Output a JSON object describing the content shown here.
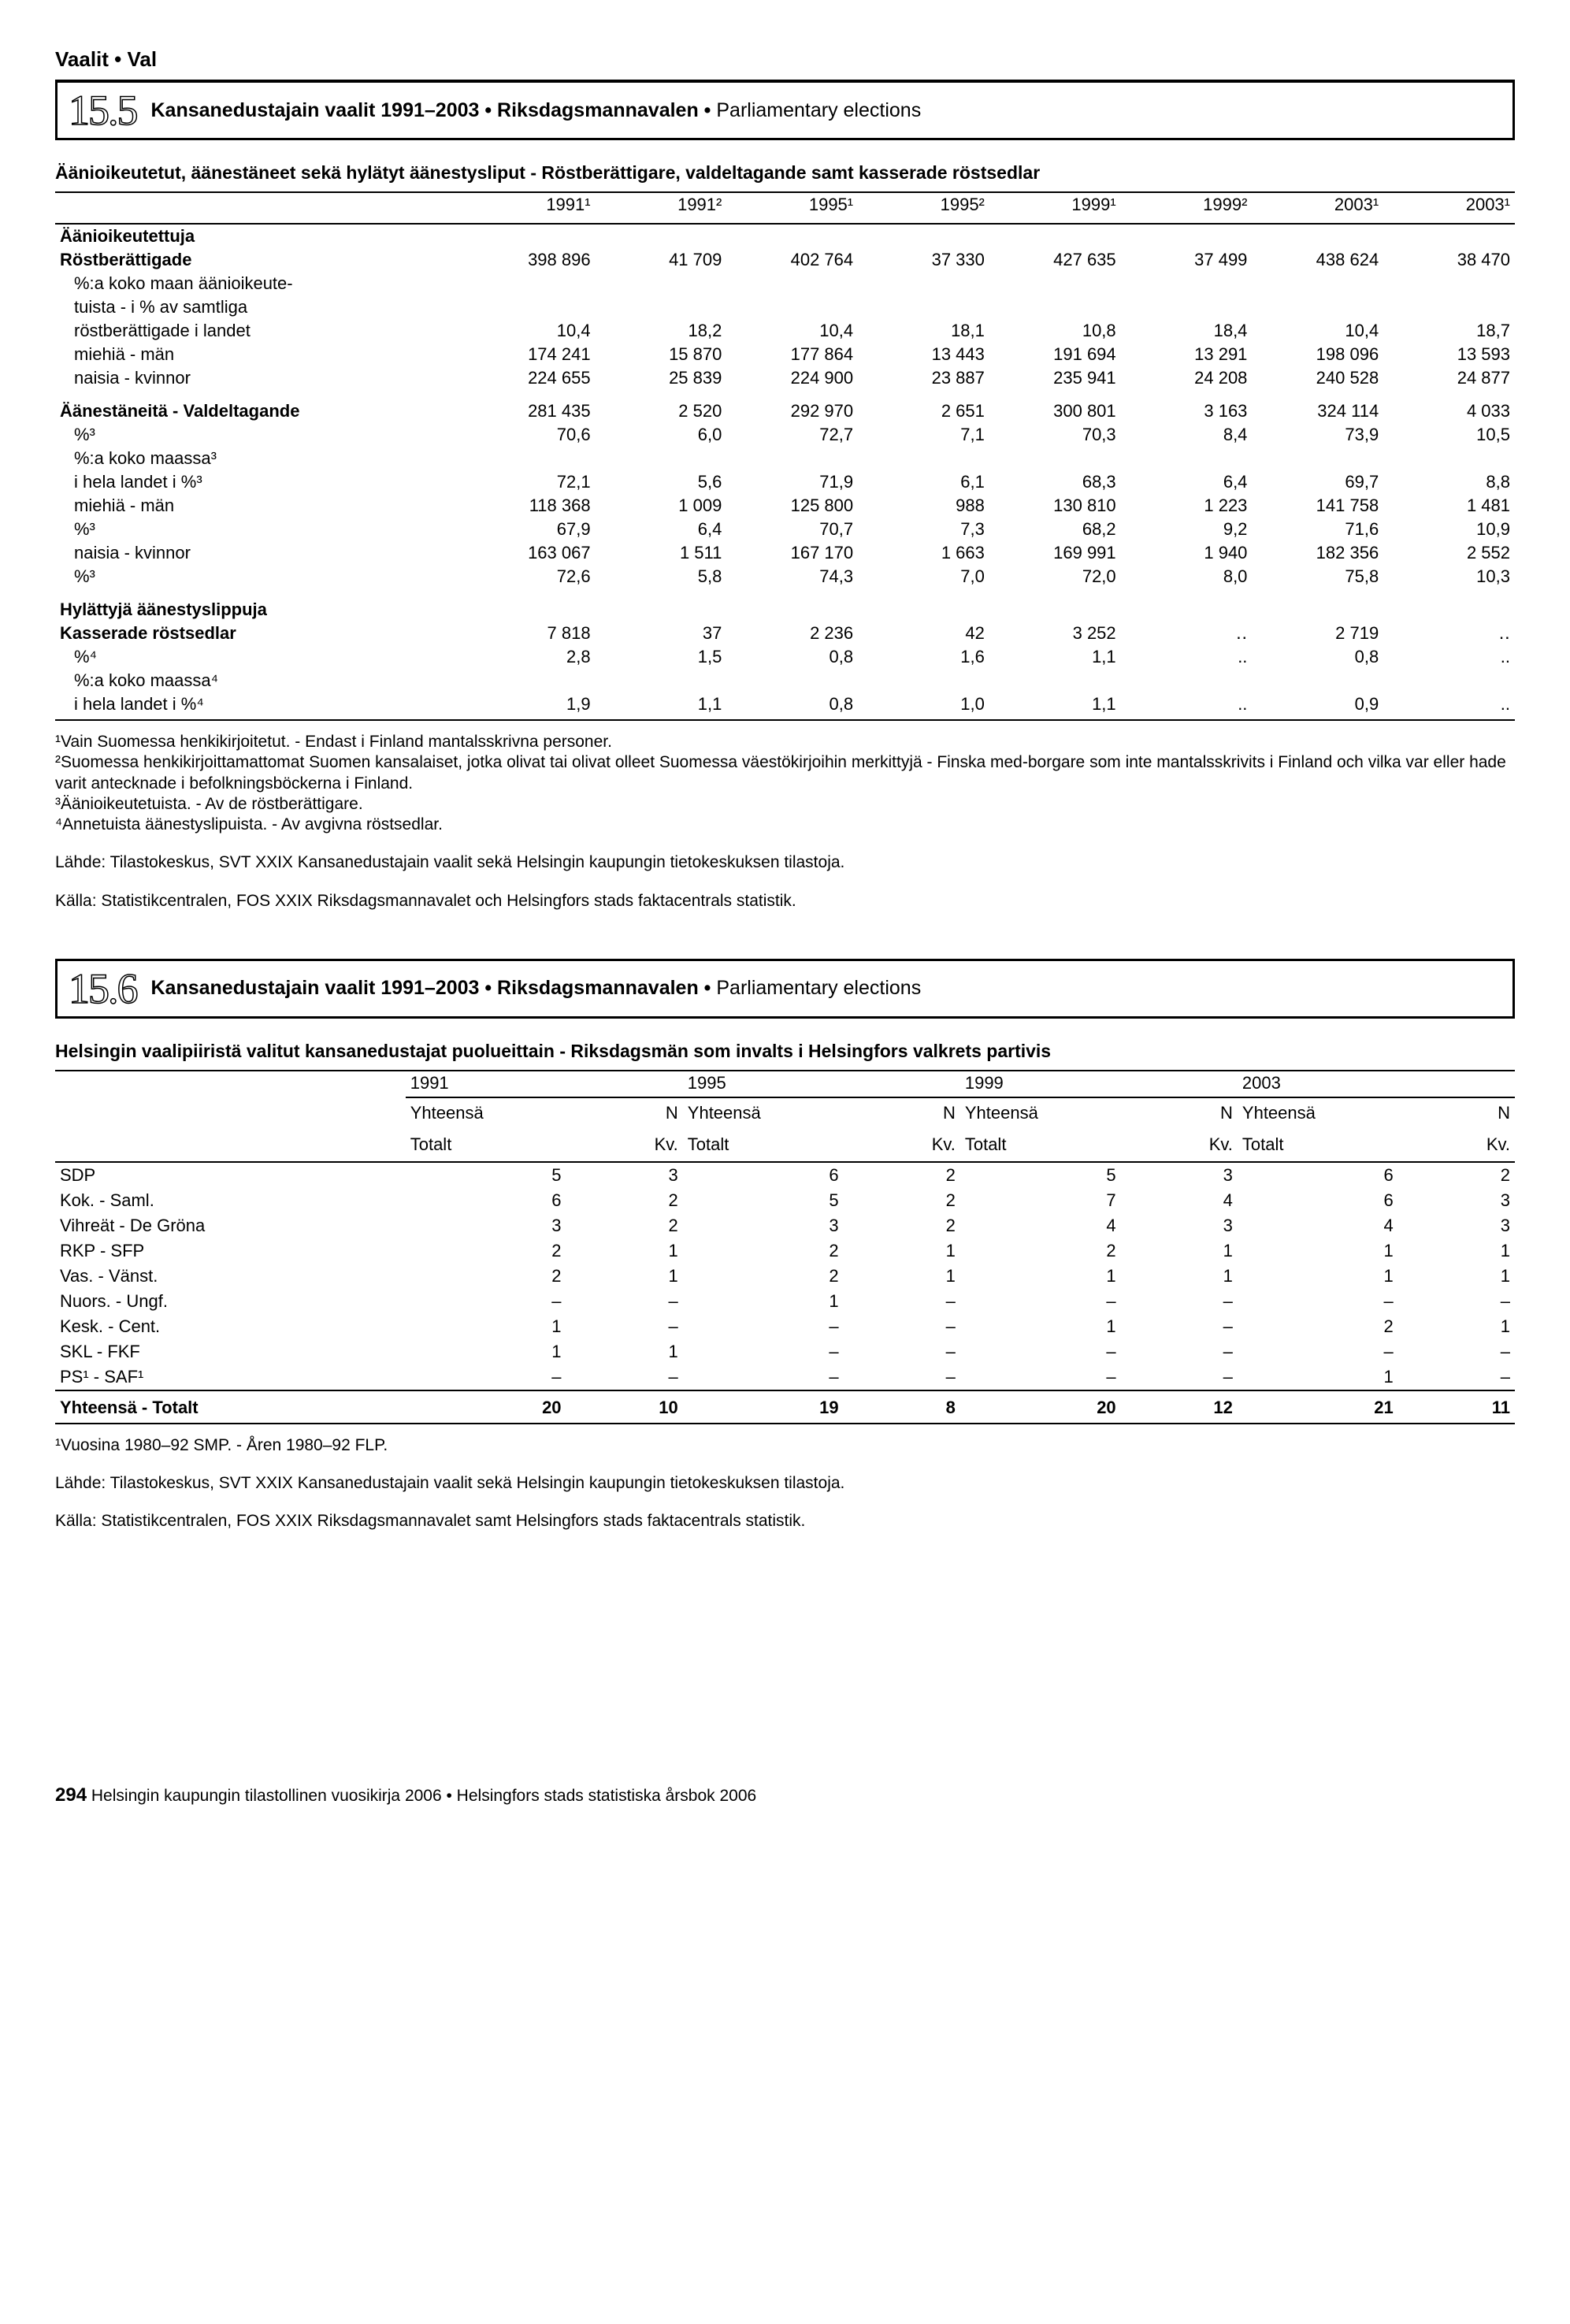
{
  "page_header": "Vaalit • Val",
  "section1": {
    "number": "15.5",
    "title_bold": "Kansanedustajain vaalit 1991–2003 • Riksdagsmannavalen • ",
    "title_light": "Parliamentary elections",
    "subheading": "Äänioikeutetut, äänestäneet sekä hylätyt äänestysliput - Röstberättigare, valdeltagande samt kasserade röstsedlar",
    "col_headers": [
      "1991¹",
      "1991²",
      "1995¹",
      "1995²",
      "1999¹",
      "1999²",
      "2003¹",
      "2003¹"
    ],
    "rows": [
      {
        "label": "Äänioikeutettuja",
        "bold": true,
        "values": [
          "",
          "",
          "",
          "",
          "",
          "",
          "",
          ""
        ]
      },
      {
        "label": "Röstberättigade",
        "bold": true,
        "values": [
          "398 896",
          "41 709",
          "402 764",
          "37 330",
          "427 635",
          "37 499",
          "438 624",
          "38 470"
        ]
      },
      {
        "label": "%:a koko maan äänioikeute-",
        "indent": true,
        "values": [
          "",
          "",
          "",
          "",
          "",
          "",
          "",
          ""
        ]
      },
      {
        "label": "tuista - i % av samtliga",
        "indent": true,
        "values": [
          "",
          "",
          "",
          "",
          "",
          "",
          "",
          ""
        ]
      },
      {
        "label": "röstberättigade i landet",
        "indent": true,
        "values": [
          "10,4",
          "18,2",
          "10,4",
          "18,1",
          "10,8",
          "18,4",
          "10,4",
          "18,7"
        ]
      },
      {
        "label": "miehiä - män",
        "indent": true,
        "values": [
          "174 241",
          "15 870",
          "177 864",
          "13 443",
          "191 694",
          "13 291",
          "198 096",
          "13 593"
        ]
      },
      {
        "label": "naisia - kvinnor",
        "indent": true,
        "values": [
          "224 655",
          "25 839",
          "224 900",
          "23 887",
          "235 941",
          "24 208",
          "240 528",
          "24 877"
        ]
      },
      {
        "label": "Äänestäneitä - Valdeltagande",
        "bold": true,
        "gap": true,
        "values": [
          "281 435",
          "2 520",
          "292 970",
          "2 651",
          "300 801",
          "3 163",
          "324 114",
          "4 033"
        ]
      },
      {
        "label": "%³",
        "indent": true,
        "values": [
          "70,6",
          "6,0",
          "72,7",
          "7,1",
          "70,3",
          "8,4",
          "73,9",
          "10,5"
        ]
      },
      {
        "label": "%:a koko maassa³",
        "indent": true,
        "values": [
          "",
          "",
          "",
          "",
          "",
          "",
          "",
          ""
        ]
      },
      {
        "label": "i hela landet i %³",
        "indent": true,
        "values": [
          "72,1",
          "5,6",
          "71,9",
          "6,1",
          "68,3",
          "6,4",
          "69,7",
          "8,8"
        ]
      },
      {
        "label": "miehiä - män",
        "indent": true,
        "values": [
          "118 368",
          "1 009",
          "125 800",
          "988",
          "130 810",
          "1 223",
          "141 758",
          "1 481"
        ]
      },
      {
        "label": "%³",
        "indent": true,
        "values": [
          "67,9",
          "6,4",
          "70,7",
          "7,3",
          "68,2",
          "9,2",
          "71,6",
          "10,9"
        ]
      },
      {
        "label": "naisia - kvinnor",
        "indent": true,
        "values": [
          "163 067",
          "1 511",
          "167 170",
          "1 663",
          "169 991",
          "1 940",
          "182 356",
          "2 552"
        ]
      },
      {
        "label": "%³",
        "indent": true,
        "values": [
          "72,6",
          "5,8",
          "74,3",
          "7,0",
          "72,0",
          "8,0",
          "75,8",
          "10,3"
        ]
      },
      {
        "label": "Hylättyjä äänestyslippuja",
        "bold": true,
        "gap": true,
        "values": [
          "",
          "",
          "",
          "",
          "",
          "",
          "",
          ""
        ]
      },
      {
        "label": "Kasserade röstsedlar",
        "bold": true,
        "values": [
          "7 818",
          "37",
          "2 236",
          "42",
          "3 252",
          "‥",
          "2 719",
          "‥"
        ]
      },
      {
        "label": "%⁴",
        "indent": true,
        "values": [
          "2,8",
          "1,5",
          "0,8",
          "1,6",
          "1,1",
          "..",
          "0,8",
          ".."
        ]
      },
      {
        "label": "%:a koko maassa⁴",
        "indent": true,
        "values": [
          "",
          "",
          "",
          "",
          "",
          "",
          "",
          ""
        ]
      },
      {
        "label": "i hela landet i %⁴",
        "indent": true,
        "values": [
          "1,9",
          "1,1",
          "0,8",
          "1,0",
          "1,1",
          "..",
          "0,9",
          ".."
        ]
      }
    ],
    "footnotes": [
      "¹Vain Suomessa henkikirjoitetut. - Endast i Finland mantalsskrivna personer.",
      "²Suomessa henkikirjoittamattomat Suomen kansalaiset, jotka olivat tai olivat olleet Suomessa väestökirjoihin merkittyjä - Finska med-borgare som inte mantalsskrivits i Finland och vilka var eller hade varit antecknade i befolkningsböckerna i Finland.",
      "³Äänioikeutetuista. - Av de röstberättigare.",
      "⁴Annetuista äänestyslipuista. - Av avgivna röstsedlar."
    ],
    "source": [
      "Lähde: Tilastokeskus, SVT XXIX Kansanedustajain vaalit sekä Helsingin kaupungin tietokeskuksen tilastoja.",
      "Källa: Statistikcentralen, FOS XXIX Riksdagsmannavalet och Helsingfors stads faktacentrals statistik."
    ],
    "col_width_label": "28%",
    "col_width_data": "9%"
  },
  "section2": {
    "number": "15.6",
    "title_bold": "Kansanedustajain vaalit 1991–2003 • Riksdagsmannavalen • ",
    "title_light": "Parliamentary elections",
    "subheading": "Helsingin vaalipiiristä valitut kansanedustajat puolueittain - Riksdagsmän som invalts i Helsingfors valkrets partivis",
    "years": [
      "1991",
      "1995",
      "1999",
      "2003"
    ],
    "sub_headers": [
      [
        "Yhteensä",
        "N"
      ],
      [
        "Totalt",
        "Kv."
      ]
    ],
    "rows": [
      {
        "label": "SDP",
        "values": [
          "5",
          "3",
          "6",
          "2",
          "5",
          "3",
          "6",
          "2"
        ]
      },
      {
        "label": "Kok. - Saml.",
        "values": [
          "6",
          "2",
          "5",
          "2",
          "7",
          "4",
          "6",
          "3"
        ]
      },
      {
        "label": "Vihreät - De Gröna",
        "values": [
          "3",
          "2",
          "3",
          "2",
          "4",
          "3",
          "4",
          "3"
        ]
      },
      {
        "label": "RKP - SFP",
        "values": [
          "2",
          "1",
          "2",
          "1",
          "2",
          "1",
          "1",
          "1"
        ]
      },
      {
        "label": "Vas. - Vänst.",
        "values": [
          "2",
          "1",
          "2",
          "1",
          "1",
          "1",
          "1",
          "1"
        ]
      },
      {
        "label": "Nuors. - Ungf.",
        "values": [
          "–",
          "–",
          "1",
          "–",
          "–",
          "–",
          "–",
          "–"
        ]
      },
      {
        "label": "Kesk. - Cent.",
        "values": [
          "1",
          "–",
          "–",
          "–",
          "1",
          "–",
          "2",
          "1"
        ]
      },
      {
        "label": "SKL - FKF",
        "values": [
          "1",
          "1",
          "–",
          "–",
          "–",
          "–",
          "–",
          "–"
        ]
      },
      {
        "label": "PS¹ - SAF¹",
        "values": [
          "–",
          "–",
          "–",
          "–",
          "–",
          "–",
          "1",
          "–"
        ]
      }
    ],
    "total_row": {
      "label": "Yhteensä - Totalt",
      "values": [
        "20",
        "10",
        "19",
        "8",
        "20",
        "12",
        "21",
        "11"
      ]
    },
    "footnotes": [
      "¹Vuosina 1980–92 SMP. - Åren 1980–92 FLP."
    ],
    "source": [
      "Lähde: Tilastokeskus, SVT XXIX Kansanedustajain vaalit sekä Helsingin kaupungin tietokeskuksen tilastoja.",
      "Källa: Statistikcentralen, FOS XXIX Riksdagsmannavalet samt Helsingfors stads faktacentrals statistik."
    ]
  },
  "footer": {
    "page_number": "294",
    "text": "Helsingin kaupungin tilastollinen vuosikirja 2006 • Helsingfors stads statistiska årsbok 2006"
  }
}
